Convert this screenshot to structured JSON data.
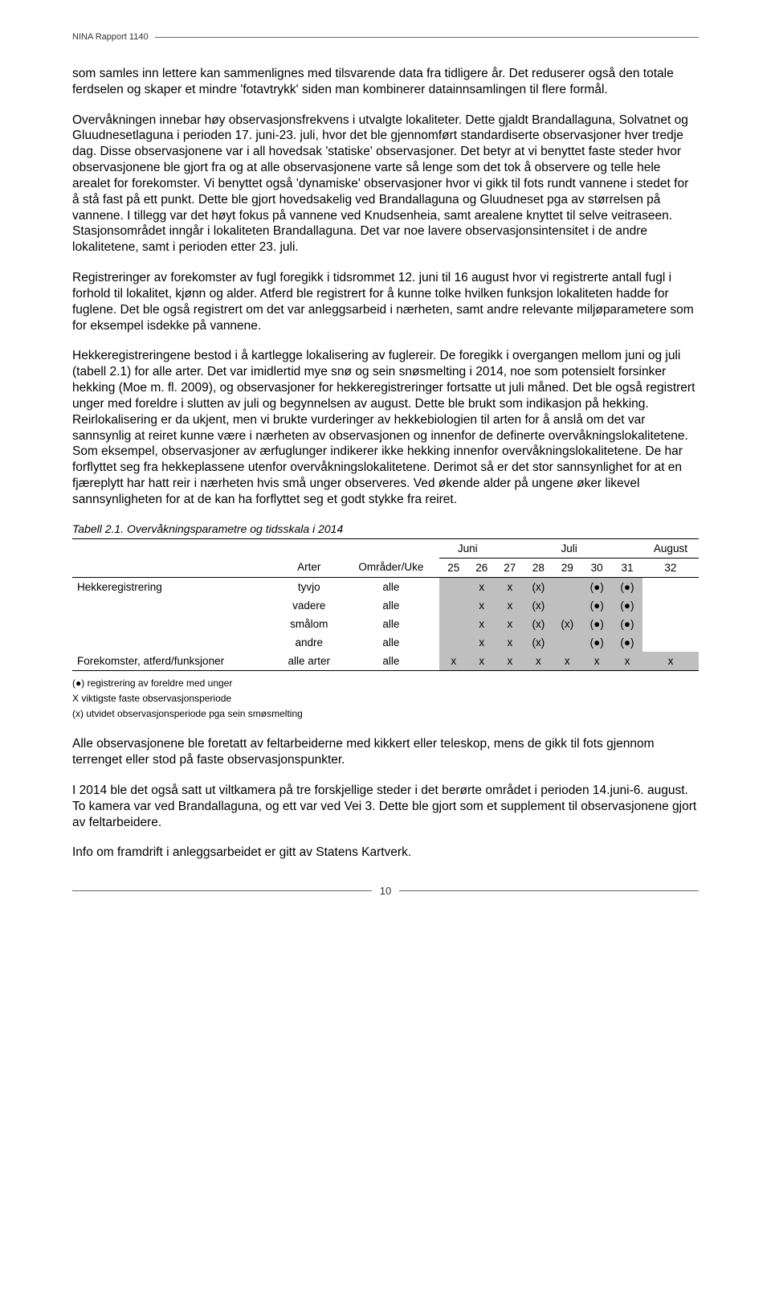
{
  "header": {
    "title": "NINA Rapport 1140"
  },
  "paragraphs": {
    "p1": "som samles inn lettere kan sammenlignes med tilsvarende data fra tidligere år. Det reduserer også den totale ferdselen og skaper et mindre 'fotavtrykk' siden man kombinerer datainnsamlingen til flere formål.",
    "p2": "Overvåkningen innebar høy observasjonsfrekvens i utvalgte lokaliteter. Dette gjaldt Brandallaguna, Solvatnet og Gluudnesetlaguna i perioden 17. juni-23. juli, hvor det ble gjennomført standardiserte observasjoner hver tredje dag. Disse observasjonene var i all hovedsak 'statiske' observasjoner. Det betyr at vi benyttet faste steder hvor observasjonene ble gjort fra og at alle observasjonene varte så lenge som det tok å observere og telle hele arealet for forekomster. Vi benyttet også 'dynamiske' observasjoner hvor vi gikk til fots rundt vannene i stedet for å stå fast på ett punkt. Dette ble gjort hovedsakelig ved Brandallaguna og Gluudneset pga av størrelsen på vannene. I tillegg var det høyt fokus på vannene ved Knudsenheia, samt arealene knyttet til selve veitraseen. Stasjonsområdet inngår i lokaliteten Brandallaguna. Det var noe lavere observasjonsintensitet i de andre lokalitetene, samt i perioden etter 23. juli.",
    "p3": "Registreringer av forekomster av fugl foregikk i tidsrommet 12. juni til 16 august hvor vi registrerte antall fugl i forhold til lokalitet, kjønn og alder. Atferd ble registrert for å kunne tolke hvilken funksjon lokaliteten hadde for fuglene. Det ble også registrert om det var anleggsarbeid i nærheten, samt andre relevante miljøparametere som for eksempel isdekke på vannene.",
    "p4": "Hekkeregistreringene bestod i å kartlegge lokalisering av fuglereir. De foregikk i overgangen mellom juni og juli (tabell 2.1) for alle arter. Det var imidlertid mye snø og sein snøsmelting i 2014, noe som potensielt forsinker hekking (Moe m. fl. 2009), og observasjoner for hekkeregistreringer fortsatte ut juli måned. Det ble også registrert unger med foreldre i slutten av juli og begynnelsen av august. Dette ble brukt som indikasjon på hekking. Reirlokalisering er da ukjent, men vi brukte vurderinger av hekkebiologien til arten for å anslå om det var sannsynlig at reiret kunne være i nærheten av observasjonen og innenfor de definerte overvåkningslokalitetene. Som eksempel, observasjoner av ærfuglunger indikerer ikke hekking innenfor overvåkningslokalitetene. De har forflyttet seg fra hekkeplassene utenfor overvåkningslokalitetene. Derimot så er det stor sannsynlighet for at en fjæreplytt har hatt reir i nærheten hvis små unger observeres. Ved økende alder på ungene øker likevel sannsynligheten for at de kan ha forflyttet seg et godt stykke fra reiret.",
    "p5": "Alle observasjonene ble foretatt av feltarbeiderne med kikkert eller teleskop, mens de gikk til fots gjennom terrenget eller stod på faste observasjonspunkter.",
    "p6": "I 2014 ble det også satt ut viltkamera på tre forskjellige steder i det berørte området i perioden 14.juni-6. august. To kamera var ved Brandallaguna, og ett var ved Vei 3. Dette ble gjort som et supplement til observasjonene gjort av feltarbeidere.",
    "p7": "Info om framdrift i anleggsarbeidet er gitt av Statens Kartverk."
  },
  "table": {
    "title": "Tabell 2.1. Overvåkningsparametre og tidsskala i 2014",
    "month_groups": [
      {
        "label": "Juni",
        "span": 2
      },
      {
        "label": "Juli",
        "span": 5
      },
      {
        "label": "August",
        "span": 1
      }
    ],
    "col_headers": {
      "arter": "Arter",
      "omrader": "Områder/Uke",
      "weeks": [
        "25",
        "26",
        "27",
        "28",
        "29",
        "30",
        "31",
        "32"
      ]
    },
    "shaded_color": "#bfbfbf",
    "rows": [
      {
        "cat": "Hekkeregistrering",
        "arter": "tyvjo",
        "omr": "alle",
        "cells": [
          {
            "v": "",
            "s": true
          },
          {
            "v": "x",
            "s": true
          },
          {
            "v": "x",
            "s": true
          },
          {
            "v": "(x)",
            "s": true
          },
          {
            "v": "",
            "s": true
          },
          {
            "v": "(●)",
            "s": true
          },
          {
            "v": "(●)",
            "s": true
          },
          {
            "v": "",
            "s": false
          }
        ]
      },
      {
        "cat": "",
        "arter": "vadere",
        "omr": "alle",
        "cells": [
          {
            "v": "",
            "s": true
          },
          {
            "v": "x",
            "s": true
          },
          {
            "v": "x",
            "s": true
          },
          {
            "v": "(x)",
            "s": true
          },
          {
            "v": "",
            "s": true
          },
          {
            "v": "(●)",
            "s": true
          },
          {
            "v": "(●)",
            "s": true
          },
          {
            "v": "",
            "s": false
          }
        ]
      },
      {
        "cat": "",
        "arter": "smålom",
        "omr": "alle",
        "cells": [
          {
            "v": "",
            "s": true
          },
          {
            "v": "x",
            "s": true
          },
          {
            "v": "x",
            "s": true
          },
          {
            "v": "(x)",
            "s": true
          },
          {
            "v": "(x)",
            "s": true
          },
          {
            "v": "(●)",
            "s": true
          },
          {
            "v": "(●)",
            "s": true
          },
          {
            "v": "",
            "s": false
          }
        ]
      },
      {
        "cat": "",
        "arter": "andre",
        "omr": "alle",
        "cells": [
          {
            "v": "",
            "s": true
          },
          {
            "v": "x",
            "s": true
          },
          {
            "v": "x",
            "s": true
          },
          {
            "v": "(x)",
            "s": true
          },
          {
            "v": "",
            "s": true
          },
          {
            "v": "(●)",
            "s": true
          },
          {
            "v": "(●)",
            "s": true
          },
          {
            "v": "",
            "s": false
          }
        ]
      },
      {
        "cat": "Forekomster, atferd/funksjoner",
        "arter": "alle arter",
        "omr": "alle",
        "cells": [
          {
            "v": "x",
            "s": true
          },
          {
            "v": "x",
            "s": true
          },
          {
            "v": "x",
            "s": true
          },
          {
            "v": "x",
            "s": true
          },
          {
            "v": "x",
            "s": true
          },
          {
            "v": "x",
            "s": true
          },
          {
            "v": "x",
            "s": true
          },
          {
            "v": "x",
            "s": true
          }
        ]
      }
    ],
    "footnotes": [
      "(●) registrering av foreldre med unger",
      "X viktigste faste observasjonsperiode",
      "(x) utvidet observasjonsperiode pga sein smøsmelting"
    ]
  },
  "footer": {
    "page_number": "10"
  }
}
